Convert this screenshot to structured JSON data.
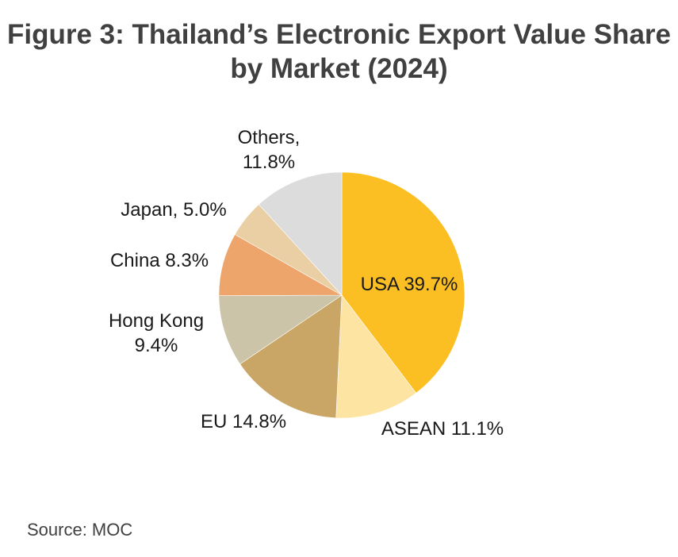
{
  "chart_data": {
    "type": "pie",
    "title_line1": "Figure 3: Thailand’s Electronic Export Value Share",
    "title_line2": "by Market (2024)",
    "slices": [
      {
        "name": "USA",
        "value": 39.7,
        "label": "USA 39.7%",
        "color": "#fbbf24"
      },
      {
        "name": "ASEAN",
        "value": 11.1,
        "label": "ASEAN 11.1%",
        "color": "#fde4a3"
      },
      {
        "name": "EU",
        "value": 14.8,
        "label": "EU 14.8%",
        "color": "#c9a666"
      },
      {
        "name": "Hong Kong",
        "value": 9.4,
        "label": [
          "Hong Kong",
          "9.4%"
        ],
        "color": "#cbc4a8"
      },
      {
        "name": "China",
        "value": 8.3,
        "label": "China 8.3%",
        "color": "#eda56c"
      },
      {
        "name": "Japan",
        "value": 5.0,
        "label": "Japan, 5.0%",
        "color": "#e9cfa3"
      },
      {
        "name": "Others",
        "value": 11.8,
        "label": [
          "Others,",
          "11.8%"
        ],
        "color": "#dcdcdc"
      }
    ]
  },
  "source": "Source:  MOC"
}
